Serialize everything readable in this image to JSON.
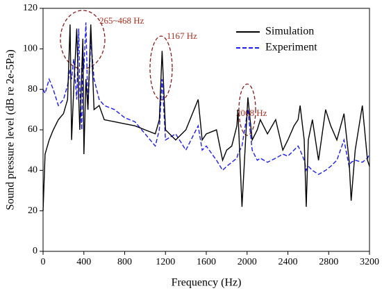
{
  "chart_data": {
    "type": "line",
    "xlabel": "Frequency (Hz)",
    "ylabel": "Sound pressure level (dB re 2e-5Pa)",
    "annotations": [
      "265~468 Hz",
      "1167 Hz",
      "2008 Hz"
    ],
    "legend": "upper right",
    "xlim": [
      0,
      3200
    ],
    "xticks": [
      0,
      400,
      800,
      1200,
      1600,
      2000,
      2400,
      2800,
      3200
    ],
    "ylim": [
      0,
      120
    ],
    "yticks": [
      0,
      20,
      40,
      60,
      80,
      100,
      120
    ],
    "x": [
      0,
      20,
      60,
      100,
      150,
      200,
      240,
      265,
      280,
      300,
      330,
      350,
      360,
      380,
      390,
      400,
      420,
      440,
      468,
      500,
      550,
      600,
      700,
      800,
      900,
      1000,
      1100,
      1140,
      1167,
      1200,
      1300,
      1400,
      1520,
      1560,
      1600,
      1700,
      1760,
      1800,
      1850,
      1900,
      1910,
      1950,
      2008,
      2050,
      2100,
      2130,
      2200,
      2280,
      2350,
      2400,
      2460,
      2500,
      2520,
      2560,
      2580,
      2600,
      2640,
      2700,
      2770,
      2820,
      2880,
      2950,
      3000,
      3020,
      3060,
      3130,
      3180,
      3200
    ],
    "series": [
      {
        "name": "Simulation",
        "color": "#000000",
        "dash": false,
        "values": [
          20,
          48,
          55,
          60,
          65,
          68,
          75,
          112,
          55,
          80,
          110,
          75,
          60,
          90,
          105,
          48,
          85,
          70,
          112,
          70,
          72,
          65,
          64,
          63,
          62,
          60,
          58,
          65,
          99,
          60,
          55,
          60,
          75,
          55,
          58,
          60,
          45,
          50,
          52,
          62,
          70,
          22,
          76,
          55,
          60,
          65,
          58,
          65,
          50,
          55,
          62,
          65,
          72,
          55,
          22,
          55,
          65,
          45,
          70,
          62,
          55,
          68,
          45,
          25,
          50,
          72,
          45,
          42
        ]
      },
      {
        "name": "Experiment",
        "color": "#1a1aff",
        "dash": true,
        "values": [
          80,
          78,
          85,
          80,
          72,
          75,
          82,
          90,
          85,
          95,
          75,
          110,
          80,
          60,
          100,
          90,
          113,
          70,
          105,
          85,
          75,
          72,
          70,
          66,
          64,
          58,
          52,
          60,
          85,
          55,
          58,
          50,
          62,
          50,
          52,
          45,
          40,
          42,
          44,
          46,
          48,
          52,
          70,
          50,
          45,
          46,
          44,
          46,
          48,
          47,
          50,
          52,
          50,
          45,
          40,
          42,
          40,
          38,
          40,
          42,
          45,
          55,
          42,
          44,
          45,
          44,
          46,
          48
        ]
      }
    ]
  }
}
